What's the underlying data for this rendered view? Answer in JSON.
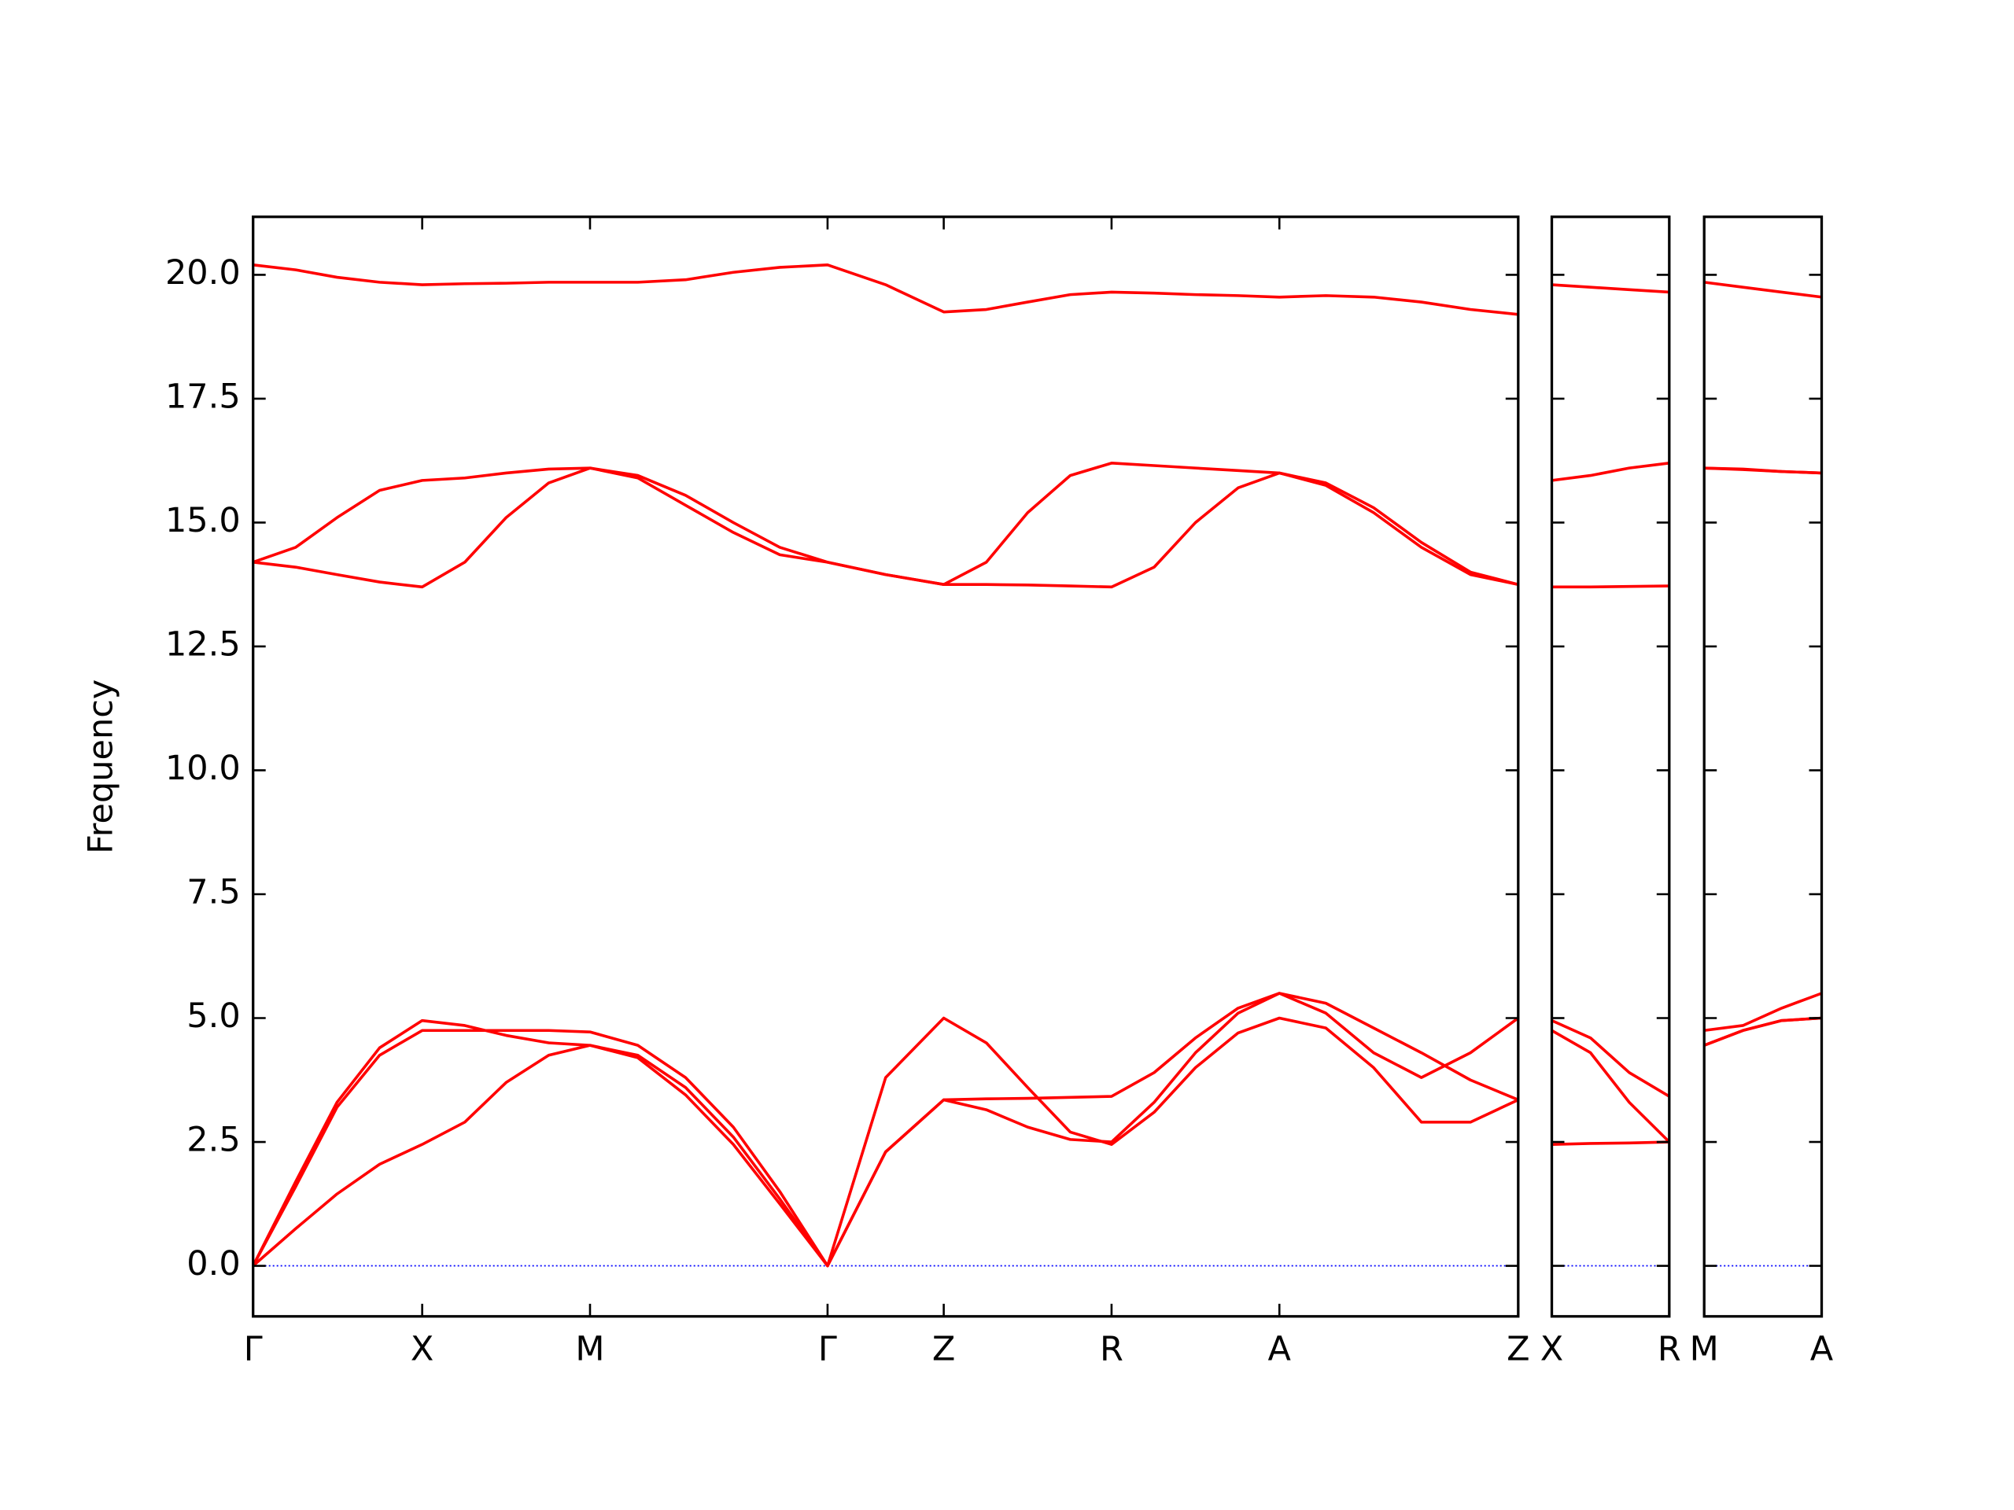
{
  "chart_data": [
    {
      "type": "line",
      "ylabel": "Frequency",
      "ylim": [
        -1.02,
        21.17
      ],
      "yticks": [
        {
          "value": 0,
          "label": "0.0"
        },
        2.5,
        {
          "value": 5,
          "label": "5.0"
        },
        7.5,
        {
          "value": 10,
          "label": "10.0"
        },
        12.5,
        {
          "value": 15,
          "label": "15.0"
        },
        17.5,
        {
          "value": 20,
          "label": "20.0"
        }
      ],
      "show_ytick_labels": true,
      "xlim": [
        0,
        9.8
      ],
      "xticks": [
        {
          "value": 0,
          "label": "Γ"
        },
        {
          "value": 1.31,
          "label": "X"
        },
        {
          "value": 2.61,
          "label": "M"
        },
        {
          "value": 4.45,
          "label": "Γ"
        },
        {
          "value": 5.35,
          "label": "Z"
        },
        {
          "value": 6.65,
          "label": "R"
        },
        {
          "value": 7.95,
          "label": "A"
        },
        {
          "value": 9.8,
          "label": "Z"
        }
      ],
      "hline": {
        "y": 0,
        "color": "#0000ff"
      },
      "x": [
        0,
        0.33,
        0.65,
        0.98,
        1.31,
        1.64,
        1.96,
        2.29,
        2.61,
        2.98,
        3.35,
        3.72,
        4.08,
        4.45,
        4.9,
        5.35,
        5.68,
        6.0,
        6.33,
        6.65,
        6.98,
        7.3,
        7.63,
        7.95,
        8.31,
        8.68,
        9.05,
        9.43,
        9.8
      ],
      "series": [
        {
          "color": "#ff0000",
          "values": [
            0,
            0.75,
            1.45,
            2.05,
            2.45,
            2.9,
            3.7,
            4.25,
            4.45,
            4.2,
            3.45,
            2.45,
            1.25,
            0,
            2.3,
            3.35,
            3.37,
            3.38,
            3.4,
            3.42,
            3.9,
            4.6,
            5.2,
            5.5,
            5.3,
            4.8,
            4.3,
            3.75,
            3.35
          ]
        },
        {
          "color": "#ff0000",
          "values": [
            0,
            1.6,
            3.2,
            4.25,
            4.75,
            4.75,
            4.75,
            4.75,
            4.72,
            4.45,
            3.8,
            2.8,
            1.5,
            0,
            2.3,
            3.35,
            3.15,
            2.8,
            2.55,
            2.5,
            3.3,
            4.3,
            5.1,
            5.5,
            5.1,
            4.3,
            3.8,
            4.3,
            5.0
          ]
        },
        {
          "color": "#ff0000",
          "values": [
            0,
            1.7,
            3.3,
            4.4,
            4.95,
            4.85,
            4.65,
            4.5,
            4.45,
            4.25,
            3.6,
            2.6,
            1.35,
            0,
            3.8,
            5.0,
            4.5,
            3.6,
            2.7,
            2.45,
            3.1,
            4.0,
            4.7,
            5.0,
            4.8,
            4.0,
            2.9,
            2.9,
            3.35
          ]
        },
        {
          "color": "#ff0000",
          "values": [
            14.2,
            14.1,
            13.95,
            13.8,
            13.7,
            14.2,
            15.1,
            15.8,
            16.1,
            15.9,
            15.35,
            14.8,
            14.35,
            14.2,
            13.95,
            13.75,
            13.75,
            13.74,
            13.72,
            13.7,
            14.1,
            15.0,
            15.7,
            16.0,
            15.75,
            15.2,
            14.5,
            13.95,
            13.75
          ]
        },
        {
          "color": "#ff0000",
          "values": [
            14.2,
            14.5,
            15.1,
            15.65,
            15.85,
            15.9,
            16.0,
            16.08,
            16.1,
            15.95,
            15.55,
            15.0,
            14.5,
            14.2,
            13.95,
            13.75,
            14.2,
            15.2,
            15.95,
            16.2,
            16.15,
            16.1,
            16.05,
            16.0,
            15.8,
            15.3,
            14.6,
            14.0,
            13.75
          ]
        },
        {
          "color": "#ff0000",
          "values": [
            20.2,
            20.1,
            19.95,
            19.85,
            19.8,
            19.82,
            19.83,
            19.85,
            19.85,
            19.85,
            19.9,
            20.05,
            20.15,
            20.2,
            19.8,
            19.25,
            19.3,
            19.45,
            19.6,
            19.65,
            19.63,
            19.6,
            19.58,
            19.55,
            19.58,
            19.55,
            19.45,
            19.3,
            19.2
          ]
        }
      ]
    },
    {
      "type": "line",
      "ylim": [
        -1.02,
        21.17
      ],
      "yticks": [
        0,
        2.5,
        5,
        7.5,
        10,
        12.5,
        15,
        17.5,
        20
      ],
      "show_ytick_labels": false,
      "xlim": [
        0,
        0.91
      ],
      "xticks": [
        {
          "value": 0,
          "label": "X"
        },
        {
          "value": 0.91,
          "label": "R"
        }
      ],
      "hline": {
        "y": 0,
        "color": "#0000ff"
      },
      "x": [
        0,
        0.3,
        0.6,
        0.91
      ],
      "series": [
        {
          "color": "#ff0000",
          "values": [
            2.45,
            2.47,
            2.48,
            2.5
          ]
        },
        {
          "color": "#ff0000",
          "values": [
            4.75,
            4.3,
            3.3,
            2.5
          ]
        },
        {
          "color": "#ff0000",
          "values": [
            4.95,
            4.6,
            3.9,
            3.42
          ]
        },
        {
          "color": "#ff0000",
          "values": [
            13.7,
            13.7,
            13.71,
            13.72
          ]
        },
        {
          "color": "#ff0000",
          "values": [
            15.85,
            15.95,
            16.1,
            16.2
          ]
        },
        {
          "color": "#ff0000",
          "values": [
            19.8,
            19.75,
            19.7,
            19.65
          ]
        }
      ]
    },
    {
      "type": "line",
      "ylim": [
        -1.02,
        21.17
      ],
      "yticks": [
        0,
        2.5,
        5,
        7.5,
        10,
        12.5,
        15,
        17.5,
        20
      ],
      "show_ytick_labels": false,
      "xlim": [
        0,
        0.91
      ],
      "xticks": [
        {
          "value": 0,
          "label": "M"
        },
        {
          "value": 0.91,
          "label": "A"
        }
      ],
      "hline": {
        "y": 0,
        "color": "#0000ff"
      },
      "x": [
        0,
        0.3,
        0.6,
        0.91
      ],
      "series": [
        {
          "color": "#ff0000",
          "values": [
            4.45,
            4.75,
            4.95,
            5.0
          ]
        },
        {
          "color": "#ff0000",
          "values": [
            4.75,
            4.85,
            5.2,
            5.5
          ]
        },
        {
          "color": "#ff0000",
          "values": [
            4.45,
            4.75,
            4.95,
            5.0
          ]
        },
        {
          "color": "#ff0000",
          "values": [
            16.1,
            16.07,
            16.03,
            16.0
          ]
        },
        {
          "color": "#ff0000",
          "values": [
            16.1,
            16.08,
            16.03,
            16.0
          ]
        },
        {
          "color": "#ff0000",
          "values": [
            19.85,
            19.75,
            19.65,
            19.55
          ]
        }
      ]
    }
  ]
}
